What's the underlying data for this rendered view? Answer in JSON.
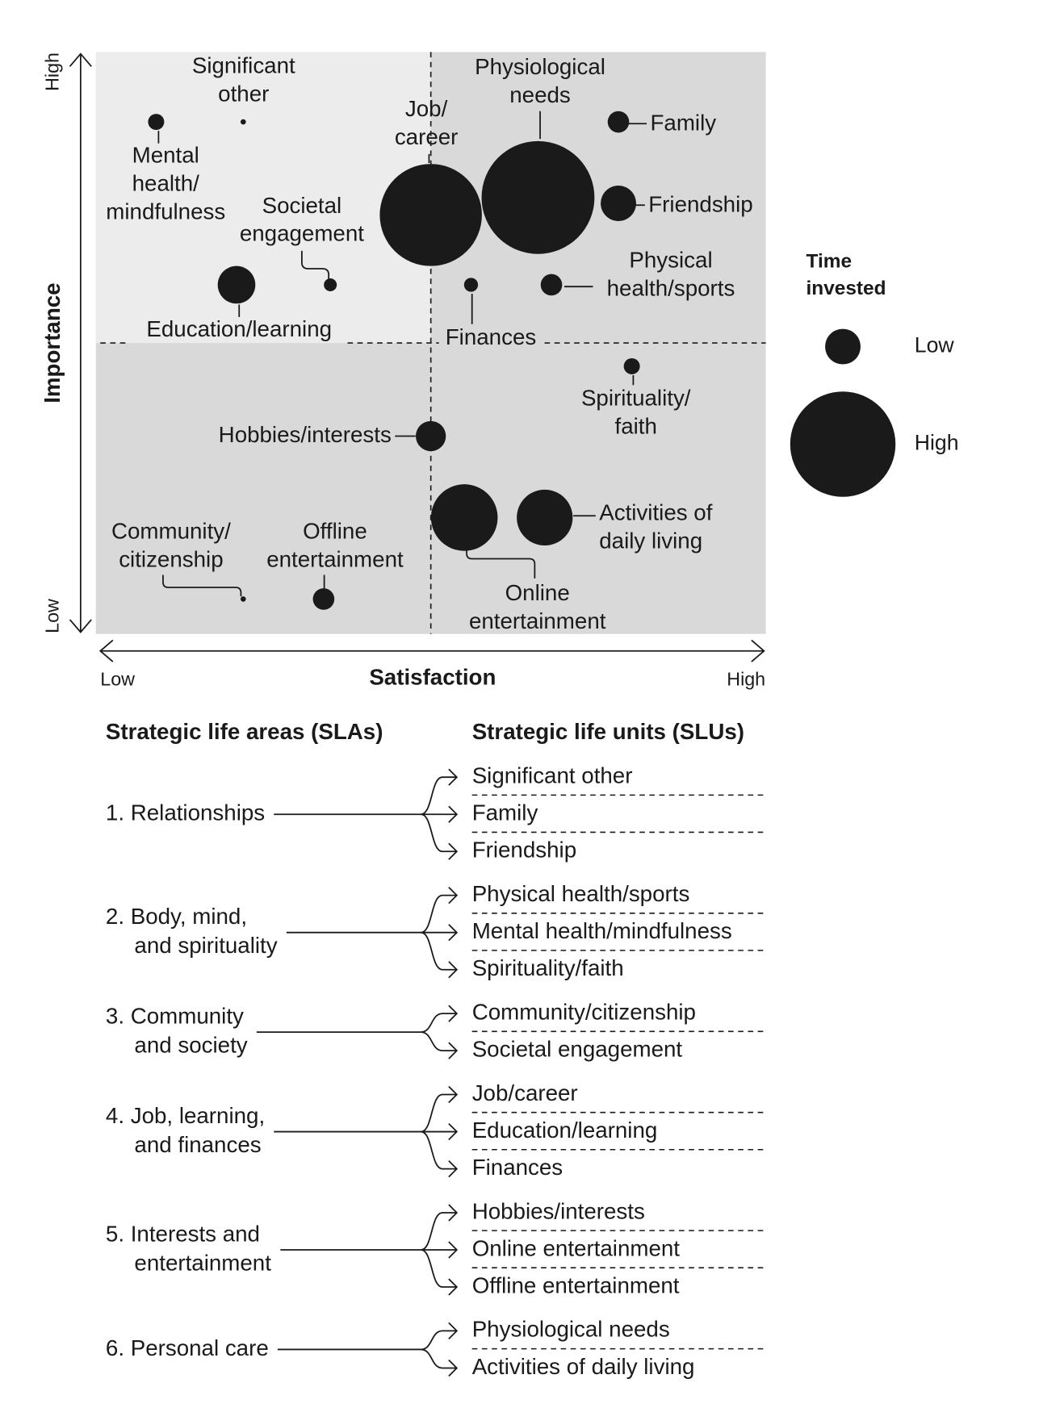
{
  "chart_data": {
    "type": "bubble",
    "x_label": "Satisfaction",
    "y_label": "Importance",
    "xlim": [
      0,
      10
    ],
    "ylim": [
      0,
      10
    ],
    "xticks": [
      {
        "value": 0,
        "label": "Low"
      },
      {
        "value": 10,
        "label": "High"
      }
    ],
    "yticks": [
      {
        "value": 0,
        "label": "Low"
      },
      {
        "value": 10,
        "label": "High"
      }
    ],
    "labels": [
      [
        "Significant",
        "other"
      ],
      [
        "Mental",
        "health/",
        "mindfulness"
      ],
      [
        "Societal",
        "engagement"
      ],
      [
        "Education/learning"
      ],
      [
        "Job/",
        "career"
      ],
      [
        "Physiological",
        "needs"
      ],
      [
        "Family"
      ],
      [
        "Friendship"
      ],
      [
        "Physical",
        "health/sports"
      ],
      [
        "Finances"
      ],
      [
        "Spirituality/",
        "faith"
      ],
      [
        "Hobbies/interests"
      ],
      [
        "Online",
        "entertainment"
      ],
      [
        "Activities of",
        "daily living"
      ],
      [
        "Community/",
        "citizenship"
      ],
      [
        "Offline",
        "entertainment"
      ]
    ],
    "x": [
      2.2,
      0.9,
      3.5,
      2.1,
      5.0,
      6.6,
      7.8,
      7.8,
      6.8,
      5.6,
      8.0,
      5.0,
      5.5,
      6.7,
      2.2,
      3.4
    ],
    "values": [
      8.8,
      8.8,
      6.0,
      6.0,
      7.2,
      7.5,
      8.8,
      7.4,
      6.0,
      6.0,
      4.6,
      3.4,
      2.0,
      2.0,
      0.6,
      0.6
    ],
    "sizes": [
      0.5,
      1.5,
      1.2,
      3.5,
      9.5,
      10.5,
      2.0,
      3.3,
      2.0,
      1.3,
      1.5,
      2.8,
      6.2,
      5.2,
      0.5,
      2.0
    ],
    "color": "#1a1a1a",
    "size_legend": {
      "title": [
        "Time",
        "invested"
      ],
      "entries": [
        {
          "value": 3.3,
          "label": "Low"
        },
        {
          "value": 9.8,
          "label": "High"
        }
      ]
    }
  },
  "life_areas": {
    "headers": [
      "Strategic life areas (SLAs)",
      "Strategic life units (SLUs)"
    ],
    "groups": [
      {
        "area": [
          "1. Relationships"
        ],
        "units": [
          "Significant other",
          "Family",
          "Friendship"
        ]
      },
      {
        "area": [
          "2. Body, mind,",
          "and spirituality"
        ],
        "units": [
          "Physical health/sports",
          "Mental health/mindfulness",
          "Spirituality/faith"
        ]
      },
      {
        "area": [
          "3. Community",
          "and society"
        ],
        "units": [
          "Community/citizenship",
          "Societal engagement"
        ]
      },
      {
        "area": [
          "4. Job, learning,",
          "and finances"
        ],
        "units": [
          "Job/career",
          "Education/learning",
          "Finances"
        ]
      },
      {
        "area": [
          "5. Interests and",
          "entertainment"
        ],
        "units": [
          "Hobbies/interests",
          "Online entertainment",
          "Offline entertainment"
        ]
      },
      {
        "area": [
          "6. Personal care"
        ],
        "units": [
          "Physiological needs",
          "Activities of daily living"
        ]
      }
    ]
  }
}
